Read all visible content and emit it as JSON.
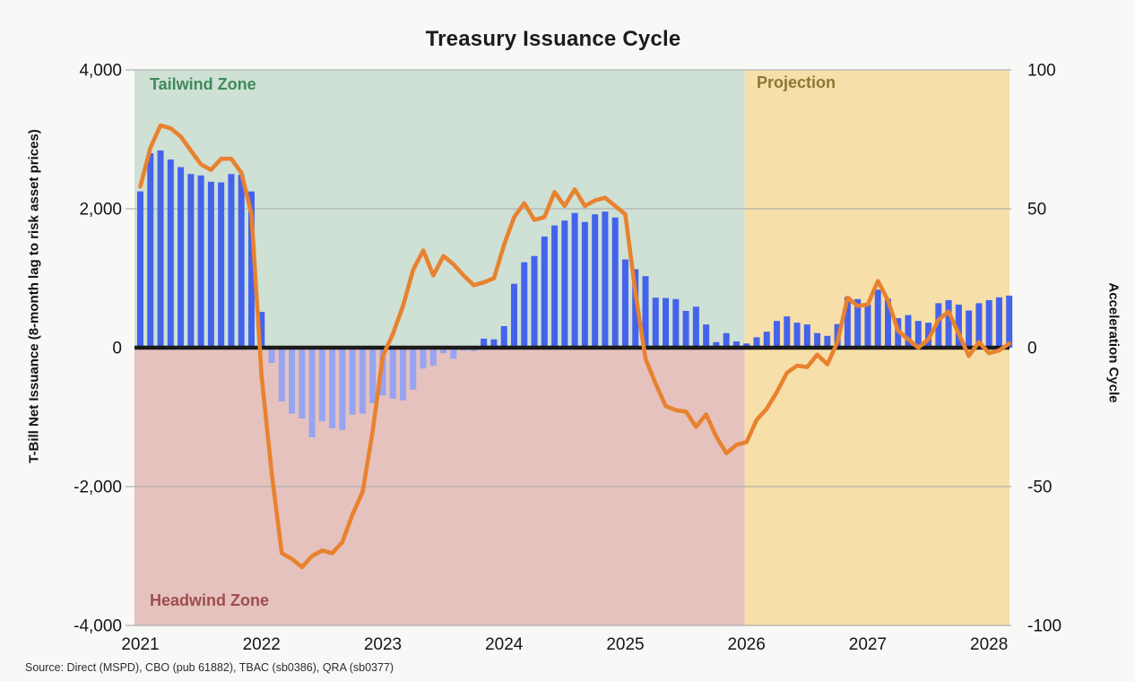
{
  "header": {
    "title": "Treasury Issuance Cycle"
  },
  "footer": {
    "source": "Source: Direct (MSPD), CBO (pub 61882), TBAC (sb0386), QRA (sb0377)"
  },
  "chart_data": {
    "type": "combo-bar-line",
    "title": "Treasury Issuance Cycle",
    "x_monthly": [
      "2021-01",
      "2021-02",
      "2021-03",
      "2021-04",
      "2021-05",
      "2021-06",
      "2021-07",
      "2021-08",
      "2021-09",
      "2021-10",
      "2021-11",
      "2021-12",
      "2022-01",
      "2022-02",
      "2022-03",
      "2022-04",
      "2022-05",
      "2022-06",
      "2022-07",
      "2022-08",
      "2022-09",
      "2022-10",
      "2022-11",
      "2022-12",
      "2023-01",
      "2023-02",
      "2023-03",
      "2023-04",
      "2023-05",
      "2023-06",
      "2023-07",
      "2023-08",
      "2023-09",
      "2023-10",
      "2023-11",
      "2023-12",
      "2024-01",
      "2024-02",
      "2024-03",
      "2024-04",
      "2024-05",
      "2024-06",
      "2024-07",
      "2024-08",
      "2024-09",
      "2024-10",
      "2024-11",
      "2024-12",
      "2025-01",
      "2025-02",
      "2025-03",
      "2025-04",
      "2025-05",
      "2025-06",
      "2025-07",
      "2025-08",
      "2025-09",
      "2025-10",
      "2025-11",
      "2025-12",
      "2026-01",
      "2026-02",
      "2026-03",
      "2026-04",
      "2026-05",
      "2026-06",
      "2026-07",
      "2026-08",
      "2026-09",
      "2026-10",
      "2026-11",
      "2026-12",
      "2027-01",
      "2027-02",
      "2027-03",
      "2027-04",
      "2027-05",
      "2027-06",
      "2027-07",
      "2027-08",
      "2027-09",
      "2027-10",
      "2027-11",
      "2027-12",
      "2028-01",
      "2028-02",
      "2028-03"
    ],
    "x_axis": {
      "tick_labels": [
        "2021",
        "2022",
        "2023",
        "2024",
        "2025",
        "2026",
        "2027",
        "2028"
      ]
    },
    "y_axis_left": {
      "label": "T-Bill Net Issuance (8-month lag to risk asset prices)",
      "range": [
        -4000,
        4000
      ],
      "ticks": [
        4000,
        2000,
        0,
        -2000,
        -4000
      ],
      "tick_labels": [
        "4,000",
        "2,000",
        "0",
        "-2,000",
        "-4,000"
      ]
    },
    "y_axis_right": {
      "label": "Acceleration Cycle",
      "range": [
        -100,
        100
      ],
      "ticks": [
        100,
        50,
        0,
        -50,
        -100
      ],
      "tick_labels": [
        "100",
        "50",
        "0",
        "-50",
        "-100"
      ]
    },
    "series": [
      {
        "name": "T-Bill Net Issuance",
        "type": "bar",
        "axis": "left",
        "color_positive": "#4463ec",
        "color_negative": "#97a4f2",
        "values": [
          2250,
          2800,
          2840,
          2710,
          2600,
          2500,
          2480,
          2390,
          2380,
          2500,
          2490,
          2250,
          515,
          -220,
          -775,
          -950,
          -1020,
          -1290,
          -1060,
          -1160,
          -1185,
          -965,
          -950,
          -800,
          -690,
          -735,
          -760,
          -605,
          -300,
          -260,
          -80,
          -160,
          -40,
          -50,
          130,
          120,
          310,
          920,
          1230,
          1320,
          1600,
          1760,
          1830,
          1940,
          1810,
          1920,
          1960,
          1875,
          1270,
          1130,
          1030,
          720,
          715,
          700,
          530,
          590,
          335,
          80,
          210,
          90,
          60,
          150,
          230,
          385,
          450,
          360,
          335,
          210,
          170,
          340,
          730,
          700,
          620,
          835,
          705,
          425,
          470,
          385,
          360,
          640,
          685,
          620,
          535,
          640,
          685,
          725,
          750
        ]
      },
      {
        "name": "Acceleration Cycle",
        "type": "line",
        "axis": "right",
        "color": "#e8822f",
        "values": [
          58,
          72,
          80,
          79,
          76,
          71,
          66,
          64,
          68,
          68,
          63,
          48,
          -10,
          -45,
          -74,
          -76,
          -79,
          -75,
          -73,
          -74,
          -70,
          -60,
          -52,
          -30,
          -3,
          5,
          15,
          28,
          35,
          26,
          33,
          30,
          26,
          22.5,
          23.5,
          25,
          37,
          47,
          52,
          46,
          47,
          56,
          51,
          57,
          51,
          53,
          54,
          51,
          48,
          20,
          -4,
          -13,
          -21,
          -22.5,
          -23,
          -28.5,
          -24,
          -32,
          -38,
          -35,
          -34,
          -26,
          -22,
          -16,
          -9,
          -6.5,
          -7,
          -2.5,
          -6,
          2,
          18,
          15,
          15.5,
          24,
          17,
          6,
          3,
          0,
          3,
          10,
          13,
          5,
          -3,
          2,
          -2,
          -1,
          1.5
        ]
      }
    ],
    "zones": [
      {
        "label": "Tailwind Zone",
        "fill": "#cfe0d4",
        "text_color": "#3e8a5a",
        "region": "above zero, 2021-01 through 2025-12"
      },
      {
        "label": "Headwind Zone",
        "fill": "#e5c2bd",
        "text_color": "#9f4d4d",
        "region": "below zero, 2021-01 through 2025-12"
      },
      {
        "label": "Projection",
        "fill": "#f7dfa9",
        "text_color": "#8e7634",
        "region": "full height, 2026-01 onward"
      }
    ],
    "grid": true,
    "legend": "none",
    "zero_line_color": "#1b1b1b"
  }
}
